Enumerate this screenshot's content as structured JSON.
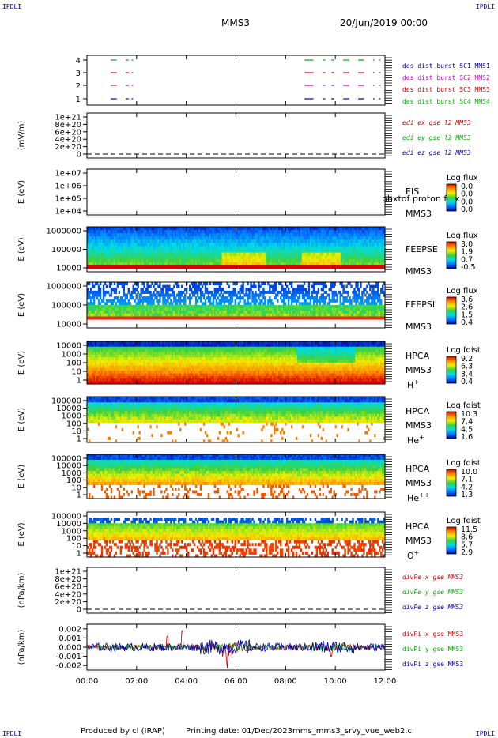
{
  "corner_label": "IPDLI",
  "header": {
    "spacecraft": "MMS3",
    "datetime": "20/Jun/2019 00:00"
  },
  "footer": {
    "produced_by": "Produced by cl (IRAP)",
    "printing_date": "Printing date: 01/Dec/2023",
    "script": "mms_mms3_srvy_vue_web2.cl"
  },
  "colors": {
    "blue": "#0000b0",
    "red": "#cc0000",
    "magenta": "#cc00cc",
    "green": "#00b000"
  },
  "chart_data": [
    {
      "type": "scatter",
      "panel": "burst",
      "yticks": [
        "1",
        "2",
        "3",
        "4"
      ],
      "legend": [
        {
          "name": "des dist burst SC1 MMS1",
          "color": "#0000b0"
        },
        {
          "name": "des dist burst SC2 MMS2",
          "color": "#cc00cc"
        },
        {
          "name": "des dist burst SC3 MMS3",
          "color": "#cc0000"
        },
        {
          "name": "des dist burst SC4 MMS4",
          "color": "#00b000"
        }
      ]
    },
    {
      "type": "line",
      "panel": "edi",
      "ylabel": "(mV/m)",
      "yticks": [
        "1e+21",
        "8e+20",
        "6e+20",
        "4e+20",
        "2e+20",
        "0"
      ],
      "legend": [
        {
          "name": "edi ex gse l2 MMS3",
          "color": "#cc0000"
        },
        {
          "name": "edi ey gse l2 MMS3",
          "color": "#00b000"
        },
        {
          "name": "edi ez gse l2 MMS3",
          "color": "#0000b0"
        }
      ]
    },
    {
      "type": "heatmap",
      "panel": "eis",
      "ylabel": "E (eV)",
      "yticks": [
        "1e+07",
        "1e+06",
        "1e+05",
        "1e+04"
      ],
      "name": "EIS",
      "sc": "MMS3",
      "overlay": "phxtof proton flux",
      "cbar_title": "Log flux",
      "cbar_ticks": [
        "0.0",
        "0.0",
        "0.0",
        "0.0"
      ]
    },
    {
      "type": "heatmap",
      "panel": "feepse",
      "ylabel": "E (eV)",
      "yticks": [
        "1000000",
        "100000",
        "10000"
      ],
      "name": "FEEPSE",
      "sc": "MMS3",
      "cbar_title": "Log flux",
      "cbar_ticks": [
        "3.0",
        "1.9",
        "0.7",
        "-0.5"
      ]
    },
    {
      "type": "heatmap",
      "panel": "feepsi",
      "ylabel": "E (eV)",
      "yticks": [
        "1000000",
        "100000",
        "10000"
      ],
      "name": "FEEPSI",
      "sc": "MMS3",
      "cbar_title": "Log flux",
      "cbar_ticks": [
        "3.6",
        "2.6",
        "1.5",
        "0.4"
      ]
    },
    {
      "type": "heatmap",
      "panel": "hpca_h",
      "ylabel": "E (eV)",
      "yticks": [
        "10000",
        "1000",
        "100",
        "10",
        "1"
      ],
      "name": "HPCA",
      "sc": "MMS3",
      "species": "H",
      "species_sup": "+",
      "cbar_title": "Log fdist",
      "cbar_ticks": [
        "9.2",
        "6.3",
        "3.4",
        "0.4"
      ]
    },
    {
      "type": "heatmap",
      "panel": "hpca_he",
      "ylabel": "E (eV)",
      "yticks": [
        "100000",
        "10000",
        "1000",
        "100",
        "10",
        "1"
      ],
      "name": "HPCA",
      "sc": "MMS3",
      "species": "He",
      "species_sup": "+",
      "cbar_title": "Log fdist",
      "cbar_ticks": [
        "10.3",
        "7.4",
        "4.5",
        "1.6"
      ]
    },
    {
      "type": "heatmap",
      "panel": "hpca_hepp",
      "ylabel": "E (eV)",
      "yticks": [
        "100000",
        "10000",
        "1000",
        "100",
        "10",
        "1"
      ],
      "name": "HPCA",
      "sc": "MMS3",
      "species": "He",
      "species_sup": "++",
      "cbar_title": "Log fdist",
      "cbar_ticks": [
        "10.0",
        "7.1",
        "4.2",
        "1.3"
      ]
    },
    {
      "type": "heatmap",
      "panel": "hpca_o",
      "ylabel": "E (eV)",
      "yticks": [
        "100000",
        "10000",
        "1000",
        "100",
        "10",
        "1"
      ],
      "name": "HPCA",
      "sc": "MMS3",
      "species": "O",
      "species_sup": "+",
      "cbar_title": "Log fdist",
      "cbar_ticks": [
        "11.5",
        "8.6",
        "5.7",
        "2.9"
      ]
    },
    {
      "type": "line",
      "panel": "divpe",
      "ylabel": "(nPa/km)",
      "yticks": [
        "1e+21",
        "8e+20",
        "6e+20",
        "4e+20",
        "2e+20",
        "0"
      ],
      "legend": [
        {
          "name": "divPe x gse MMS3",
          "color": "#cc0000"
        },
        {
          "name": "divPe y gse MMS3",
          "color": "#00b000"
        },
        {
          "name": "divPe z gse MMS3",
          "color": "#0000b0"
        }
      ]
    },
    {
      "type": "line",
      "panel": "divpi",
      "ylabel": "(nPa/km)",
      "yticks": [
        "0.002",
        "0.001",
        "0.000",
        "-0.001",
        "-0.002"
      ],
      "ylim": [
        -0.0025,
        0.0025
      ],
      "legend": [
        {
          "name": "divPi x gse MMS3",
          "color": "#cc0000"
        },
        {
          "name": "divPi y gse MMS3",
          "color": "#00b000"
        },
        {
          "name": "divPi z gse MMS3",
          "color": "#0000b0"
        }
      ]
    }
  ],
  "xaxis": {
    "ticks": [
      "00:00",
      "02:00",
      "04:00",
      "06:00",
      "08:00",
      "10:00",
      "12:00"
    ]
  }
}
